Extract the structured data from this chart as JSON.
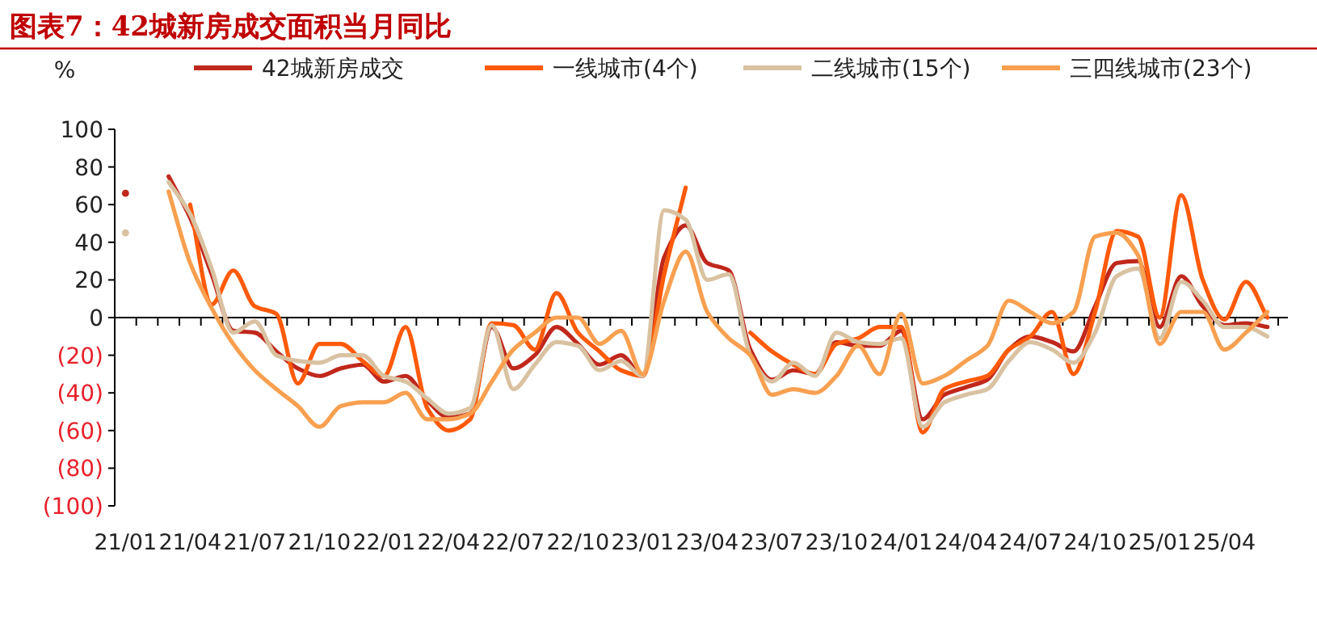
{
  "chart_data": {
    "type": "line",
    "title": "图表7：42城新房成交面积当月同比",
    "ylabel": "%",
    "categories": [
      "21/01",
      null,
      null,
      "21/04",
      null,
      null,
      "21/07",
      null,
      null,
      "21/10",
      null,
      null,
      "22/01",
      null,
      null,
      "22/04",
      null,
      null,
      "22/07",
      null,
      null,
      "22/10",
      null,
      null,
      "23/01",
      null,
      null,
      "23/04",
      null,
      null,
      "23/07",
      null,
      null,
      "23/10",
      null,
      null,
      "24/01",
      null,
      null,
      "24/04",
      null,
      null,
      "24/07",
      null,
      null,
      "24/10",
      null,
      null,
      "25/01",
      null,
      null,
      "25/04",
      null,
      null
    ],
    "ylim": [
      -100,
      100
    ],
    "yticks": [
      100,
      80,
      60,
      40,
      20,
      0,
      {
        "value": -20,
        "label": "(20)"
      },
      {
        "value": -40,
        "label": "(40)"
      },
      {
        "value": -60,
        "label": "(60)"
      },
      {
        "value": -80,
        "label": "(80)"
      },
      {
        "value": -100,
        "label": "(100)"
      }
    ],
    "legend": "top",
    "marker": "none",
    "line_style": "solid",
    "series": [
      {
        "name": "42城新房成交",
        "color": "#c0281c",
        "values": [
          66,
          null,
          75,
          53,
          23,
          -7,
          -8,
          -18,
          -27,
          -31,
          -27,
          -25,
          -34,
          -31,
          -44,
          -53,
          -51,
          -5,
          -27,
          -20,
          -5,
          -14,
          -25,
          -20,
          -31,
          32,
          49,
          29,
          25,
          -17,
          -33,
          -28,
          -30,
          -13,
          -15,
          -15,
          -7,
          -54,
          -41,
          -37,
          -33,
          -17,
          -10,
          -13,
          -18,
          6,
          29,
          30,
          -5,
          22,
          6,
          -4,
          -3,
          -5
        ]
      },
      {
        "name": "一线城市(4个)",
        "color": "#ff5a0a",
        "values": [
          null,
          null,
          null,
          60,
          7,
          25,
          6,
          2,
          -35,
          -14,
          -14,
          -23,
          -31,
          -5,
          -48,
          -60,
          -54,
          -3,
          -4,
          -17,
          13,
          -8,
          -18,
          -28,
          -31,
          23,
          69,
          null,
          null,
          -8,
          -18,
          -25,
          -30,
          -14,
          -11,
          -5,
          -5,
          -61,
          -38,
          -34,
          -31,
          -17,
          -10,
          3,
          -30,
          3,
          46,
          43,
          0,
          65,
          20,
          -1,
          19,
          0
        ]
      },
      {
        "name": "二线城市(15个)",
        "color": "#d9c2a2",
        "values": [
          45,
          null,
          72,
          55,
          26,
          -8,
          -2,
          -20,
          -23,
          -24,
          -20,
          -20,
          -31,
          -34,
          -43,
          -51,
          -48,
          -4,
          -38,
          -25,
          -13,
          -15,
          -28,
          -23,
          -31,
          57,
          52,
          20,
          23,
          -20,
          -34,
          -24,
          -31,
          -8,
          -13,
          -14,
          -11,
          -58,
          -45,
          -41,
          -38,
          -23,
          -13,
          -17,
          -24,
          -8,
          22,
          26,
          -11,
          19,
          9,
          -5,
          -5,
          -10
        ]
      },
      {
        "name": "三四线城市(23个)",
        "color": "#f8a050",
        "values": [
          null,
          null,
          67,
          29,
          5,
          -14,
          -28,
          -38,
          -47,
          -58,
          -47,
          -45,
          -45,
          -40,
          -54,
          -54,
          -51,
          -34,
          -17,
          -8,
          0,
          0,
          -14,
          -7,
          -30,
          9,
          35,
          3,
          -11,
          -20,
          -41,
          -38,
          -40,
          -31,
          -15,
          -30,
          2,
          -35,
          -31,
          -23,
          -15,
          9,
          3,
          -3,
          3,
          43,
          45,
          33,
          -14,
          3,
          3,
          -17,
          -8,
          3
        ]
      }
    ]
  }
}
